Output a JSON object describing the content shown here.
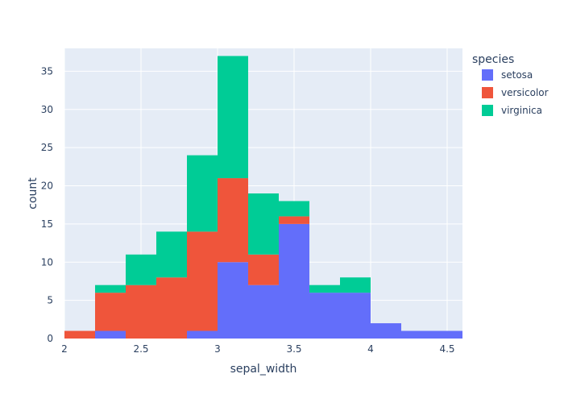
{
  "chart_data": {
    "type": "bar",
    "stacked": true,
    "xlabel": "sepal_width",
    "ylabel": "count",
    "xlim": [
      2.0,
      4.6
    ],
    "ylim": [
      0,
      38
    ],
    "bin_width": 0.2,
    "bin_starts": [
      2.0,
      2.2,
      2.4,
      2.6,
      2.8,
      3.0,
      3.2,
      3.4,
      3.6,
      3.8,
      4.0,
      4.2,
      4.4
    ],
    "x_tick_values": [
      2,
      2.5,
      3,
      3.5,
      4,
      4.5
    ],
    "x_tick_labels": [
      "2",
      "2.5",
      "3",
      "3.5",
      "4",
      "4.5"
    ],
    "y_tick_values": [
      0,
      5,
      10,
      15,
      20,
      25,
      30,
      35
    ],
    "y_tick_labels": [
      "0",
      "5",
      "10",
      "15",
      "20",
      "25",
      "30",
      "35"
    ],
    "legend": {
      "title": "species",
      "placement": "top-right"
    },
    "plot_background": "#e5ecf6",
    "series": [
      {
        "name": "setosa",
        "color": "#636efa",
        "values": [
          0,
          1,
          0,
          0,
          1,
          10,
          7,
          15,
          6,
          6,
          2,
          1,
          1
        ]
      },
      {
        "name": "versicolor",
        "color": "#ef553b",
        "values": [
          1,
          5,
          7,
          8,
          13,
          11,
          4,
          1,
          0,
          0,
          0,
          0,
          0
        ]
      },
      {
        "name": "virginica",
        "color": "#00cc96",
        "values": [
          0,
          1,
          4,
          6,
          10,
          16,
          8,
          2,
          1,
          2,
          0,
          0,
          0
        ]
      }
    ]
  }
}
